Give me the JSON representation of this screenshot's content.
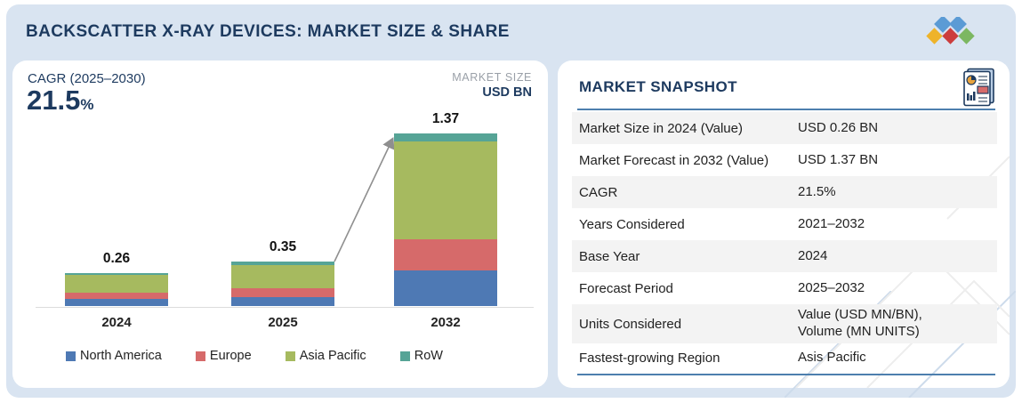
{
  "header": {
    "title": "BACKSCATTER X-RAY DEVICES: MARKET SIZE & SHARE"
  },
  "logo": {
    "name": "five-diamond-brand-logo",
    "colors": {
      "blue": "#5b9bd5",
      "yellow": "#eeb32a",
      "red": "#cc3d3d",
      "green": "#7cb761"
    }
  },
  "chart_panel": {
    "cagr_label": "CAGR (2025–2030)",
    "cagr_value": "21.5",
    "cagr_unit": "%",
    "market_size_label": "MARKET SIZE",
    "market_size_unit": "USD BN"
  },
  "chart_data": {
    "type": "bar",
    "stacked": true,
    "categories": [
      "2024",
      "2025",
      "2032"
    ],
    "series": [
      {
        "name": "North America",
        "color": "#4e79b4",
        "values": [
          0.055,
          0.07,
          0.28
        ]
      },
      {
        "name": "Europe",
        "color": "#d66a6a",
        "values": [
          0.05,
          0.07,
          0.25
        ]
      },
      {
        "name": "Asia Pacific",
        "color": "#a6ba5f",
        "values": [
          0.14,
          0.187,
          0.77
        ]
      },
      {
        "name": "RoW",
        "color": "#56a496",
        "values": [
          0.015,
          0.023,
          0.07
        ]
      }
    ],
    "totals": [
      0.26,
      0.35,
      1.37
    ],
    "total_labels": [
      "0.26",
      "0.35",
      "1.37"
    ],
    "ylabel": "USD BN",
    "ylim": [
      0,
      1.5
    ],
    "grid": false,
    "legend_position": "bottom",
    "annotations": [
      "trend arrow from 2025 bar top to 2032 bar top"
    ]
  },
  "snapshot": {
    "title": "MARKET SNAPSHOT",
    "icon": "report-document-icon",
    "rows": [
      {
        "label": "Market Size in 2024 (Value)",
        "value": "USD 0.26 BN"
      },
      {
        "label": "Market Forecast in 2032 (Value)",
        "value": "USD 1.37 BN"
      },
      {
        "label": "CAGR",
        "value": "21.5%"
      },
      {
        "label": "Years Considered",
        "value": "2021–2032"
      },
      {
        "label": "Base Year",
        "value": "2024"
      },
      {
        "label": "Forecast Period",
        "value": "2025–2032"
      },
      {
        "label": "Units Considered",
        "value": "Value (USD MN/BN),\nVolume (MN UNITS)"
      },
      {
        "label": "Fastest-growing Region",
        "value": "Asis Pacific"
      }
    ]
  },
  "colors": {
    "background": "#d9e4f1",
    "navy": "#1d3a5f",
    "rule_blue": "#4d7fae",
    "alt_row": "#f3f3f3",
    "axis": "#dcdcdc",
    "trend_line": "#8f8f8f"
  }
}
